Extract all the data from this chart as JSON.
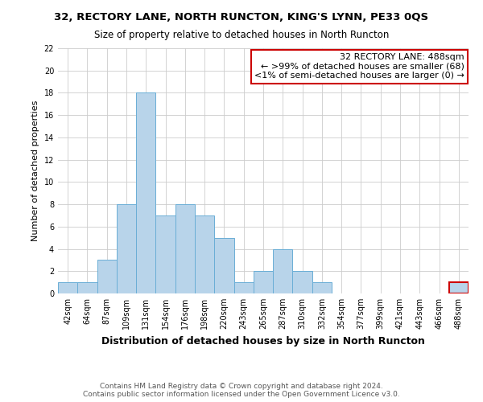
{
  "title": "32, RECTORY LANE, NORTH RUNCTON, KING'S LYNN, PE33 0QS",
  "subtitle": "Size of property relative to detached houses in North Runcton",
  "xlabel": "Distribution of detached houses by size in North Runcton",
  "ylabel": "Number of detached properties",
  "bin_labels": [
    "42sqm",
    "64sqm",
    "87sqm",
    "109sqm",
    "131sqm",
    "154sqm",
    "176sqm",
    "198sqm",
    "220sqm",
    "243sqm",
    "265sqm",
    "287sqm",
    "310sqm",
    "332sqm",
    "354sqm",
    "377sqm",
    "399sqm",
    "421sqm",
    "443sqm",
    "466sqm",
    "488sqm"
  ],
  "bar_heights": [
    1,
    1,
    3,
    8,
    18,
    7,
    8,
    7,
    5,
    1,
    2,
    4,
    2,
    1,
    0,
    0,
    0,
    0,
    0,
    0,
    1
  ],
  "bar_color": "#b8d4ea",
  "bar_edge_color": "#6aaed6",
  "highlight_bar_index": 20,
  "highlight_bar_edge_color": "#cc0000",
  "ylim": [
    0,
    22
  ],
  "yticks": [
    0,
    2,
    4,
    6,
    8,
    10,
    12,
    14,
    16,
    18,
    20,
    22
  ],
  "annotation_title": "32 RECTORY LANE: 488sqm",
  "annotation_line1": "← >99% of detached houses are smaller (68)",
  "annotation_line2": "<1% of semi-detached houses are larger (0) →",
  "annotation_border_color": "#cc0000",
  "footer_line1": "Contains HM Land Registry data © Crown copyright and database right 2024.",
  "footer_line2": "Contains public sector information licensed under the Open Government Licence v3.0.",
  "background_color": "#ffffff",
  "grid_color": "#cccccc",
  "title_fontsize": 9.5,
  "subtitle_fontsize": 8.5,
  "xlabel_fontsize": 9,
  "ylabel_fontsize": 8,
  "tick_fontsize": 7,
  "annotation_fontsize": 8,
  "footer_fontsize": 6.5
}
